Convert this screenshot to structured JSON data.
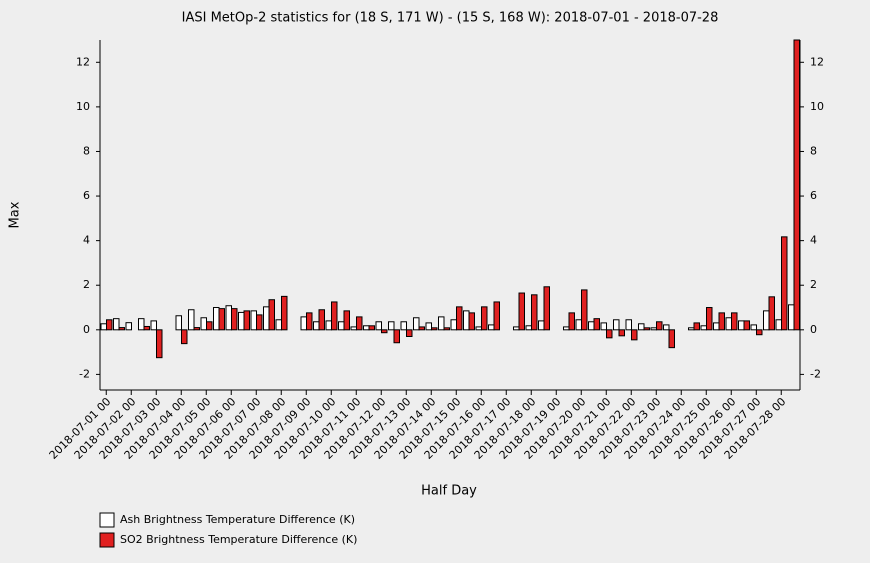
{
  "chart_data": {
    "type": "bar",
    "title": "IASI MetOp-2 statistics for (18 S, 171 W) - (15 S, 168 W): 2018-07-01 - 2018-07-28",
    "xlabel": "Half Day",
    "ylabel": "Max",
    "categories": [
      "2018-07-01 00",
      null,
      "2018-07-02 00",
      null,
      "2018-07-03 00",
      null,
      "2018-07-04 00",
      null,
      "2018-07-05 00",
      null,
      "2018-07-06 00",
      null,
      "2018-07-07 00",
      null,
      "2018-07-08 00",
      null,
      "2018-07-09 00",
      null,
      "2018-07-10 00",
      null,
      "2018-07-11 00",
      null,
      "2018-07-12 00",
      null,
      "2018-07-13 00",
      null,
      "2018-07-14 00",
      null,
      "2018-07-15 00",
      null,
      "2018-07-16 00",
      null,
      "2018-07-17 00",
      null,
      "2018-07-18 00",
      null,
      "2018-07-19 00",
      null,
      "2018-07-20 00",
      null,
      "2018-07-21 00",
      null,
      "2018-07-22 00",
      null,
      "2018-07-23 00",
      null,
      "2018-07-24 00",
      null,
      "2018-07-25 00",
      null,
      "2018-07-26 00",
      null,
      "2018-07-27 00",
      null,
      "2018-07-28 00",
      null
    ],
    "series": [
      {
        "name": "Ash Brightness Temperature Difference (K)",
        "color": "#ffffff",
        "values": [
          0.27,
          0.5,
          0.32,
          0.5,
          0.4,
          null,
          0.63,
          0.9,
          0.54,
          1.0,
          1.08,
          0.78,
          0.85,
          1.03,
          0.45,
          null,
          0.58,
          0.36,
          0.4,
          0.36,
          0.13,
          0.18,
          0.36,
          0.36,
          0.36,
          0.54,
          0.31,
          0.58,
          0.45,
          0.85,
          0.13,
          0.22,
          null,
          0.13,
          0.18,
          0.4,
          null,
          0.13,
          0.45,
          0.36,
          0.31,
          0.45,
          0.45,
          0.27,
          0.09,
          0.22,
          null,
          0.09,
          0.18,
          0.31,
          0.54,
          0.4,
          0.22,
          0.85,
          0.45,
          1.12
        ]
      },
      {
        "name": "SO2 Brightness Temperature Difference (K)",
        "color": "#e02020",
        "values": [
          0.45,
          0.1,
          0.0,
          0.15,
          -1.25,
          null,
          -0.62,
          0.1,
          0.36,
          0.95,
          0.95,
          0.85,
          0.67,
          1.35,
          1.5,
          null,
          0.76,
          0.9,
          1.25,
          0.85,
          0.58,
          0.18,
          -0.13,
          -0.58,
          -0.3,
          0.13,
          0.09,
          0.09,
          1.03,
          0.76,
          1.03,
          1.25,
          null,
          1.65,
          1.57,
          1.93,
          null,
          0.76,
          1.79,
          0.5,
          -0.36,
          -0.27,
          -0.45,
          0.09,
          0.36,
          -0.8,
          null,
          0.31,
          1.0,
          0.76,
          0.76,
          0.4,
          -0.22,
          1.48,
          4.17,
          13.0
        ]
      }
    ],
    "ylim": [
      -2.7,
      13
    ],
    "yticks": [
      -2,
      0,
      2,
      4,
      6,
      8,
      10,
      12
    ],
    "legend": "bottom-left",
    "grid": false
  }
}
